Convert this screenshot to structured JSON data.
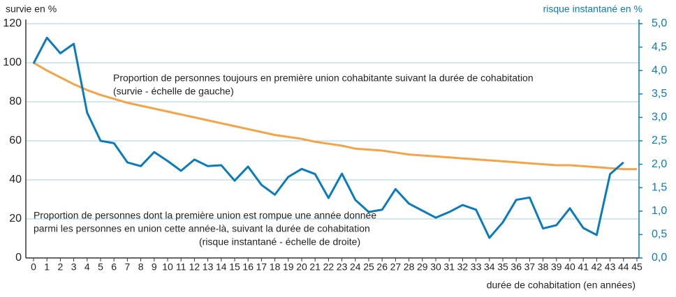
{
  "chart_data": {
    "type": "line",
    "y_label": "survie en %",
    "y2_label": "risque instantané en %",
    "x_label": "durée de cohabitation (en années)",
    "categories": [
      0,
      1,
      2,
      3,
      4,
      5,
      6,
      7,
      8,
      9,
      10,
      11,
      12,
      13,
      14,
      15,
      16,
      17,
      18,
      19,
      20,
      21,
      22,
      23,
      24,
      25,
      26,
      27,
      28,
      29,
      30,
      31,
      32,
      33,
      34,
      35,
      36,
      37,
      38,
      39,
      40,
      41,
      42,
      43,
      44,
      45
    ],
    "series": [
      {
        "name": "survie",
        "color": "#f4a347",
        "axis": "y",
        "values": [
          100,
          96,
          92.5,
          89,
          86,
          83.5,
          81.5,
          79.5,
          78,
          76.5,
          75,
          73.5,
          72,
          70.5,
          69,
          67.5,
          66,
          64.5,
          63,
          62,
          61,
          59.5,
          58.5,
          57.5,
          56,
          55.5,
          55,
          54,
          53,
          52.5,
          52,
          51.5,
          51,
          50.5,
          50,
          49.5,
          49,
          48.5,
          48,
          47.5,
          47.5,
          47,
          46.5,
          46,
          45.5,
          45.5
        ]
      },
      {
        "name": "risque instantané",
        "color": "#0a7bbd",
        "axis": "y2",
        "values": [
          4.15,
          4.7,
          4.37,
          4.57,
          3.1,
          2.5,
          2.45,
          2.04,
          1.96,
          2.26,
          2.07,
          1.86,
          2.1,
          1.96,
          1.98,
          1.65,
          1.95,
          1.56,
          1.35,
          1.73,
          1.9,
          1.79,
          1.28,
          1.8,
          1.24,
          0.98,
          1.03,
          1.47,
          1.16,
          1.01,
          0.86,
          0.98,
          1.13,
          1.03,
          0.43,
          0.76,
          1.24,
          1.29,
          0.63,
          0.7,
          1.06,
          0.64,
          0.49,
          1.79,
          2.04,
          null
        ]
      }
    ],
    "ylim": [
      0,
      120
    ],
    "yticks": [
      0,
      20,
      40,
      60,
      80,
      100,
      120
    ],
    "y2lim": [
      0,
      5
    ],
    "y2ticks": [
      {
        "value": 0,
        "label": "0,0"
      },
      {
        "value": 0.5,
        "label": "0,5"
      },
      {
        "value": 1,
        "label": "1,0"
      },
      {
        "value": 1.5,
        "label": "1,5"
      },
      {
        "value": 2,
        "label": "2,0"
      },
      {
        "value": 2.5,
        "label": "2,5"
      },
      {
        "value": 3,
        "label": "3,0"
      },
      {
        "value": 3.5,
        "label": "3,5"
      },
      {
        "value": 4,
        "label": "4,0"
      },
      {
        "value": 4.5,
        "label": "4,5"
      },
      {
        "value": 5,
        "label": "5,0"
      }
    ],
    "grid": true,
    "annotations": [
      {
        "lines": [
          "Proportion de personnes toujours en première union cohabitante suivant la durée de cohabitation",
          "(survie - échelle de gauche)"
        ]
      },
      {
        "lines": [
          "Proportion de personnes dont la première union est rompue une année donnée",
          "parmi les personnes en union cette année-là, suivant la durée de cohabitation",
          "(risque instantané - échelle de droite)"
        ]
      }
    ]
  }
}
